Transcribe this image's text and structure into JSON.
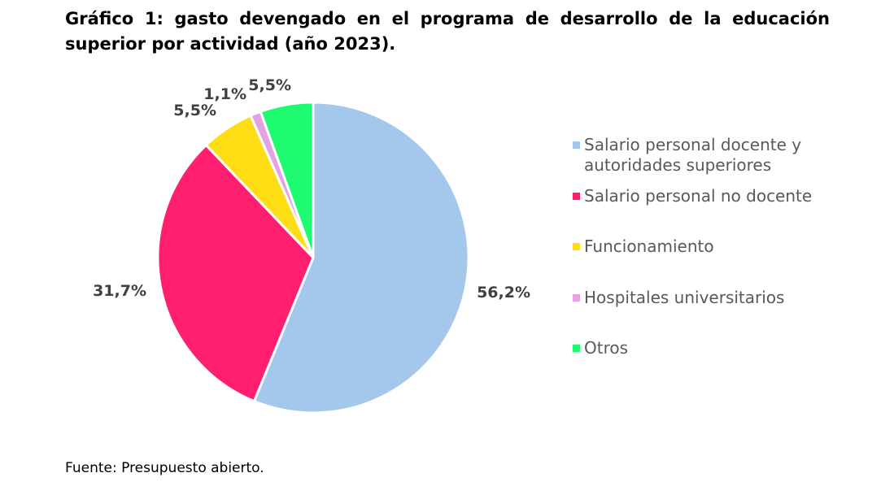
{
  "title": "Gráfico 1: gasto devengado en el programa de desarrollo de la educación superior por actividad (año 2023).",
  "source": "Fuente: Presupuesto abierto.",
  "chart_data": {
    "type": "pie",
    "slices": [
      {
        "name": "Salario personal docente y autoridades superiores",
        "value": 56.2,
        "label": "56,2%",
        "color": "#A4C8EB"
      },
      {
        "name": "Salario personal no docente",
        "value": 31.7,
        "label": "31,7%",
        "color": "#FF1F6E"
      },
      {
        "name": "Funcionamiento",
        "value": 5.5,
        "label": "5,5%",
        "color": "#FFDD14"
      },
      {
        "name": "Hospitales universitarios",
        "value": 1.1,
        "label": "1,1%",
        "color": "#E3A2E0"
      },
      {
        "name": "Otros",
        "value": 5.5,
        "label": "5,5%",
        "color": "#1EFB70"
      }
    ],
    "legend_position": "right"
  }
}
